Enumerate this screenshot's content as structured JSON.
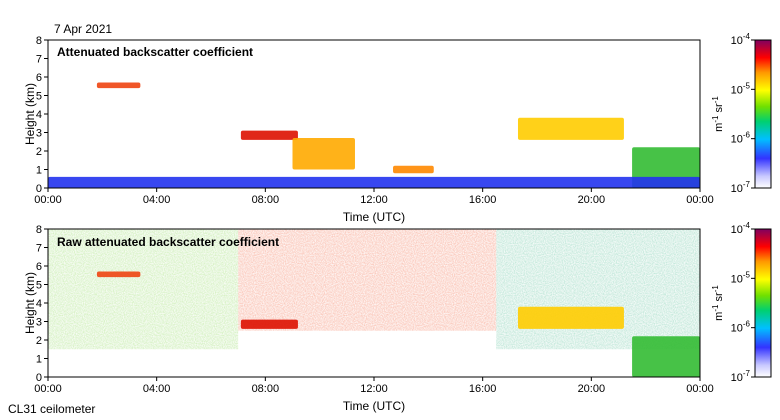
{
  "date": "7 Apr 2021",
  "instrument": "CL31 ceilometer",
  "chart_data": [
    {
      "type": "heatmap",
      "title": "Attenuated backscatter coefficient",
      "xlabel": "Time (UTC)",
      "ylabel": "Height (km)",
      "xticks": [
        "00:00",
        "04:00",
        "08:00",
        "12:00",
        "16:00",
        "20:00",
        "00:00"
      ],
      "yticks": [
        "0",
        "1",
        "2",
        "3",
        "4",
        "5",
        "6",
        "7",
        "8"
      ],
      "xlim_hours": [
        0,
        24
      ],
      "ylim_km": [
        0,
        8
      ],
      "colorbar": {
        "scale": "log",
        "range": [
          1e-07,
          0.0001
        ],
        "ticks": [
          {
            "base": "10",
            "exp": "-7",
            "value": 1e-07
          },
          {
            "base": "10",
            "exp": "-6",
            "value": 1e-06
          },
          {
            "base": "10",
            "exp": "-5",
            "value": 1e-05
          },
          {
            "base": "10",
            "exp": "-4",
            "value": 0.0001
          }
        ],
        "unit": {
          "m": "m",
          "m_exp": "-1",
          "sr": "sr",
          "sr_exp": "-1"
        }
      },
      "features": [
        {
          "kind": "cloud",
          "t_start": 1.8,
          "t_end": 3.4,
          "h_bottom": 5.4,
          "h_top": 5.7,
          "level": "orange-red"
        },
        {
          "kind": "cloud",
          "t_start": 7.1,
          "t_end": 9.2,
          "h_bottom": 2.6,
          "h_top": 3.1,
          "level": "red"
        },
        {
          "kind": "cloud",
          "t_start": 9.0,
          "t_end": 11.3,
          "h_bottom": 1.0,
          "h_top": 2.7,
          "level": "orange-yellow"
        },
        {
          "kind": "cloud",
          "t_start": 12.7,
          "t_end": 14.2,
          "h_bottom": 0.8,
          "h_top": 1.2,
          "level": "orange"
        },
        {
          "kind": "cloud",
          "t_start": 17.3,
          "t_end": 21.2,
          "h_bottom": 2.6,
          "h_top": 3.8,
          "level": "yellow-orange"
        },
        {
          "kind": "cloud",
          "t_start": 21.5,
          "t_end": 24.0,
          "h_bottom": 0.0,
          "h_top": 2.2,
          "level": "mixed"
        },
        {
          "kind": "boundary-layer",
          "t_start": 0,
          "t_end": 24,
          "h_bottom": 0.0,
          "h_top": 0.6,
          "level": "blue"
        }
      ]
    },
    {
      "type": "heatmap",
      "title": "Raw attenuated backscatter coefficient",
      "xlabel": "Time (UTC)",
      "ylabel": "Height (km)",
      "xticks": [
        "00:00",
        "04:00",
        "08:00",
        "12:00",
        "16:00",
        "20:00",
        "00:00"
      ],
      "yticks": [
        "0",
        "1",
        "2",
        "3",
        "4",
        "5",
        "6",
        "7",
        "8"
      ],
      "xlim_hours": [
        0,
        24
      ],
      "ylim_km": [
        0,
        8
      ],
      "colorbar": {
        "scale": "log",
        "range": [
          1e-07,
          0.0001
        ],
        "ticks": [
          {
            "base": "10",
            "exp": "-7",
            "value": 1e-07
          },
          {
            "base": "10",
            "exp": "-6",
            "value": 1e-06
          },
          {
            "base": "10",
            "exp": "-5",
            "value": 1e-05
          },
          {
            "base": "10",
            "exp": "-4",
            "value": 0.0001
          }
        ],
        "unit": {
          "m": "m",
          "m_exp": "-1",
          "sr": "sr",
          "sr_exp": "-1"
        }
      },
      "features": [
        {
          "kind": "noise-high",
          "t_start": 7.0,
          "t_end": 16.5,
          "h_bottom": 2.5,
          "h_top": 8.0,
          "level": "red-orange"
        },
        {
          "kind": "noise-low",
          "t_start": 0,
          "t_end": 7.0,
          "h_bottom": 1.5,
          "h_top": 8.0,
          "level": "green-yellow"
        },
        {
          "kind": "noise-low",
          "t_start": 16.5,
          "t_end": 24,
          "h_bottom": 1.5,
          "h_top": 8.0,
          "level": "green-blue"
        },
        {
          "kind": "cloud",
          "t_start": 1.8,
          "t_end": 3.4,
          "h_bottom": 5.4,
          "h_top": 5.7,
          "level": "orange-red"
        },
        {
          "kind": "cloud",
          "t_start": 7.1,
          "t_end": 9.2,
          "h_bottom": 2.6,
          "h_top": 3.1,
          "level": "red"
        },
        {
          "kind": "cloud",
          "t_start": 17.3,
          "t_end": 21.2,
          "h_bottom": 2.6,
          "h_top": 3.8,
          "level": "yellow-orange"
        },
        {
          "kind": "cloud",
          "t_start": 21.5,
          "t_end": 24.0,
          "h_bottom": 0.0,
          "h_top": 2.2,
          "level": "mixed"
        }
      ]
    }
  ]
}
